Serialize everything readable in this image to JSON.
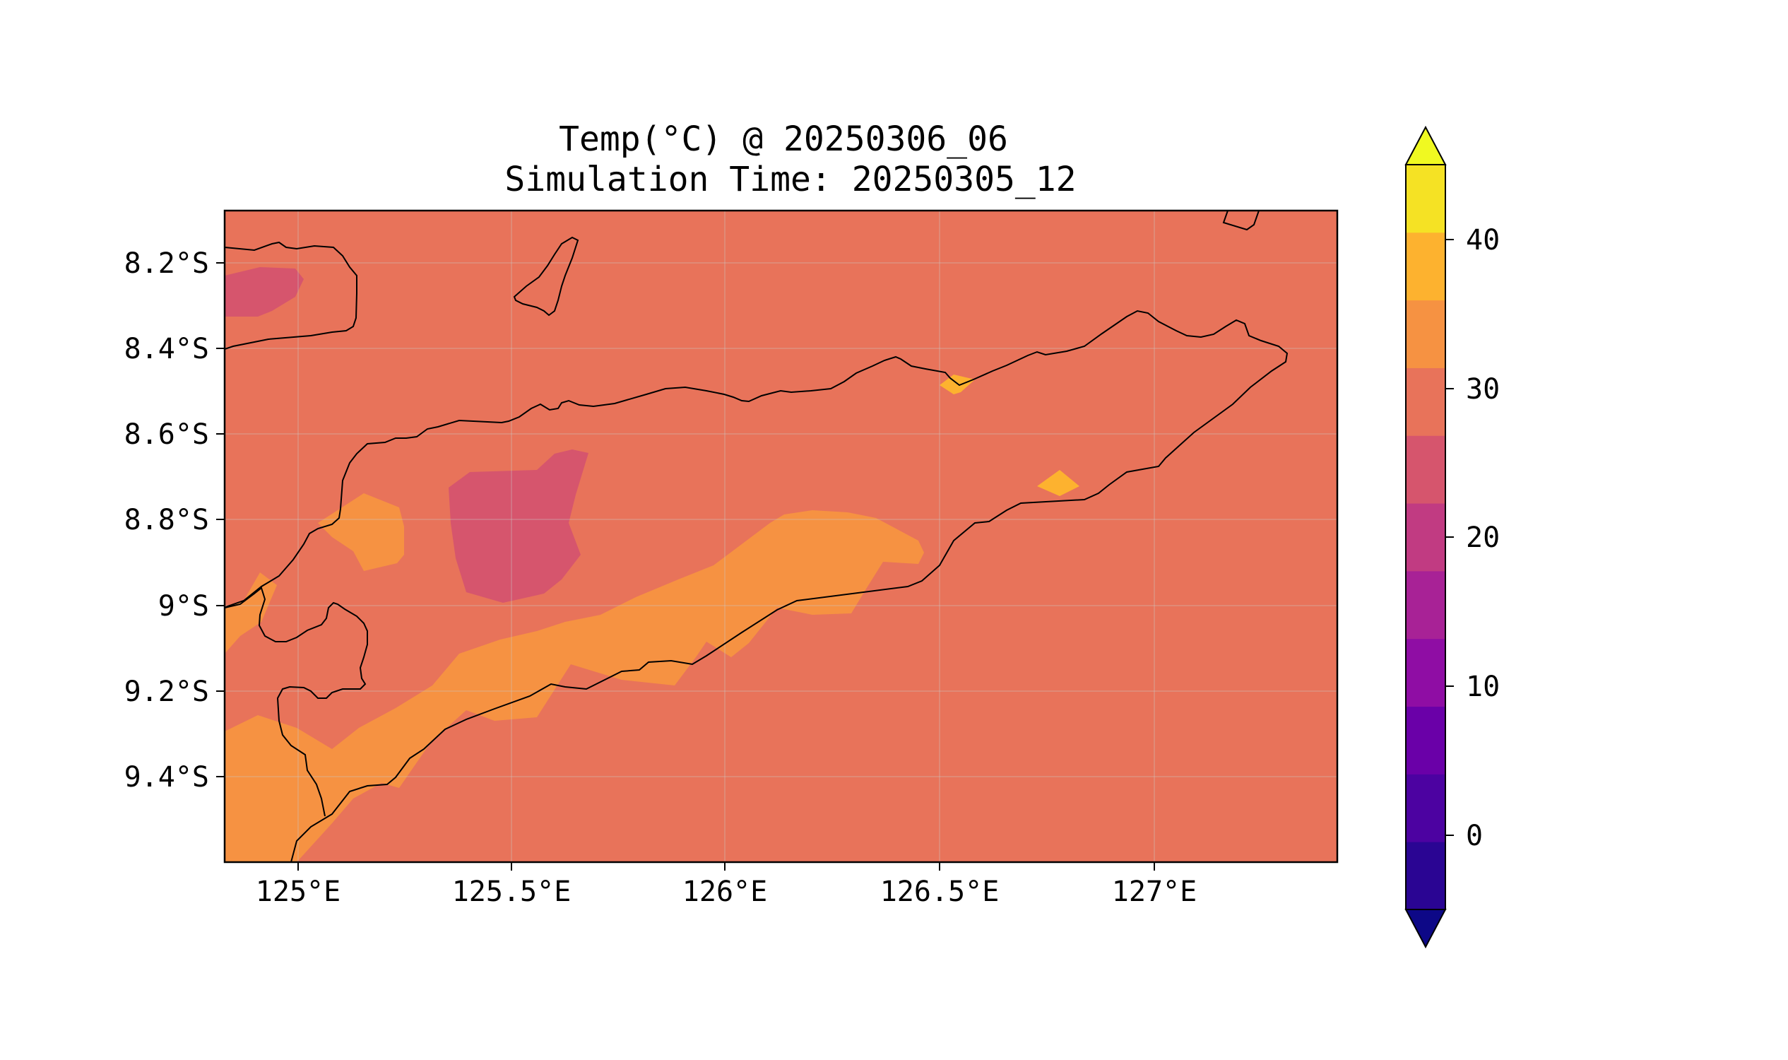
{
  "title": {
    "line1": "Temp(°C) @ 20250306_06",
    "line2": "Simulation Time: 20250305_12"
  },
  "map": {
    "x_ticks": [
      "125°E",
      "125.5°E",
      "126°E",
      "126.5°E",
      "127°E"
    ],
    "y_ticks": [
      "8.2°S",
      "8.4°S",
      "8.6°S",
      "8.8°S",
      "9°S",
      "9.2°S",
      "9.4°S"
    ],
    "grid": true,
    "coastline_color": "#000000",
    "regions": [
      {
        "name": "background 25-30 °C",
        "color": "#e8735a"
      },
      {
        "name": "30-35 °C band",
        "color": "#f69242"
      },
      {
        "name": "20-25 °C patches",
        "color": "#d6556d"
      },
      {
        "name": "35-40 °C spots",
        "color": "#fdb22f"
      }
    ]
  },
  "colorbar": {
    "ticks": [
      "0",
      "10",
      "20",
      "30",
      "40"
    ],
    "colors": [
      "#0d0887",
      "#2a0593",
      "#4c02a1",
      "#6a00a8",
      "#8f0da4",
      "#a82296",
      "#c13b82",
      "#d6556d",
      "#e8735a",
      "#f69242",
      "#fdb22f",
      "#f5e224",
      "#f0f921"
    ],
    "extend": "both"
  }
}
